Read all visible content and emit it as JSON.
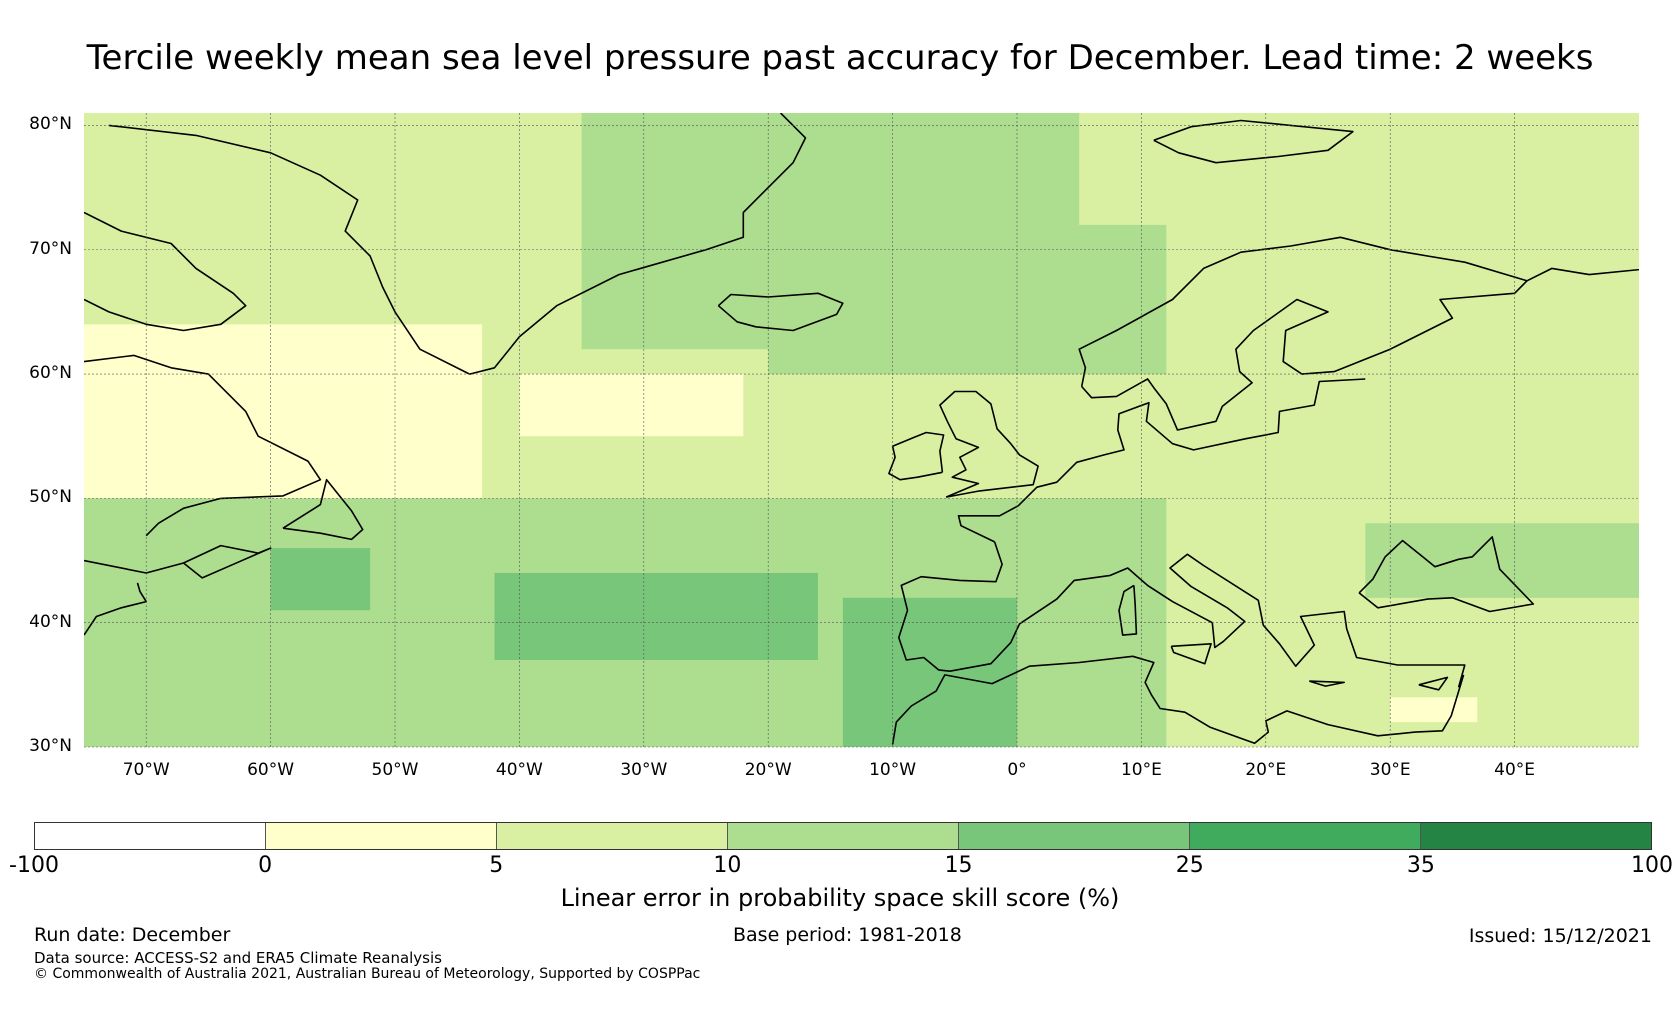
{
  "title": "Tercile weekly mean sea level pressure past accuracy for December. Lead time: 2 weeks",
  "map": {
    "region": "North Atlantic and Europe",
    "lat_range": [
      30,
      81
    ],
    "lon_range": [
      -75,
      50
    ],
    "lat_ticks": [
      {
        "value": 80,
        "label": "80°N"
      },
      {
        "value": 70,
        "label": "70°N"
      },
      {
        "value": 60,
        "label": "60°N"
      },
      {
        "value": 50,
        "label": "50°N"
      },
      {
        "value": 40,
        "label": "40°N"
      },
      {
        "value": 30,
        "label": "30°N"
      }
    ],
    "lon_ticks": [
      {
        "value": -70,
        "label": "70°W"
      },
      {
        "value": -60,
        "label": "60°W"
      },
      {
        "value": -50,
        "label": "50°W"
      },
      {
        "value": -40,
        "label": "40°W"
      },
      {
        "value": -30,
        "label": "30°W"
      },
      {
        "value": -20,
        "label": "20°W"
      },
      {
        "value": -10,
        "label": "10°W"
      },
      {
        "value": 0,
        "label": "0°"
      },
      {
        "value": 10,
        "label": "10°E"
      },
      {
        "value": 20,
        "label": "20°E"
      },
      {
        "value": 30,
        "label": "30°E"
      },
      {
        "value": 40,
        "label": "40°E"
      }
    ],
    "skill_regions": [
      {
        "name": "base",
        "class": "5-10"
      },
      {
        "name": "labrador-newfoundland",
        "class": "0-5",
        "lon": [
          -75,
          -43
        ],
        "lat": [
          50,
          64
        ]
      },
      {
        "name": "mid-atlantic-north",
        "class": "0-5",
        "lon": [
          -40,
          -22
        ],
        "lat": [
          55,
          60
        ]
      },
      {
        "name": "greenland-sea",
        "class": "10-15",
        "lon": [
          -35,
          5
        ],
        "lat": [
          62,
          81
        ]
      },
      {
        "name": "norwegian-sea",
        "class": "10-15",
        "lon": [
          -20,
          12
        ],
        "lat": [
          60,
          72
        ]
      },
      {
        "name": "subtropical-atlantic",
        "class": "10-15",
        "lon": [
          -75,
          12
        ],
        "lat": [
          30,
          50
        ]
      },
      {
        "name": "azores-core",
        "class": "15-25",
        "lon": [
          -42,
          -16
        ],
        "lat": [
          37,
          44
        ]
      },
      {
        "name": "iberia-morocco",
        "class": "15-25",
        "lon": [
          -14,
          0
        ],
        "lat": [
          30,
          42
        ]
      },
      {
        "name": "west-atlantic-core",
        "class": "15-25",
        "lon": [
          -60,
          -52
        ],
        "lat": [
          41,
          46
        ]
      },
      {
        "name": "eastern-europe",
        "class": "10-15",
        "lon": [
          28,
          50
        ],
        "lat": [
          42,
          48
        ]
      },
      {
        "name": "levant",
        "class": "0-5",
        "lon": [
          30,
          37
        ],
        "lat": [
          32,
          34
        ]
      }
    ]
  },
  "colorbar": {
    "label": "Linear error in probability space skill score (%)",
    "ticks": [
      "-100",
      "0",
      "5",
      "10",
      "15",
      "25",
      "35",
      "100"
    ],
    "classes": [
      {
        "range": "-100-0",
        "color": "#ffffff"
      },
      {
        "range": "0-5",
        "color": "#ffffcc"
      },
      {
        "range": "5-10",
        "color": "#d9f0a3"
      },
      {
        "range": "10-15",
        "color": "#addd8e"
      },
      {
        "range": "15-25",
        "color": "#78c679"
      },
      {
        "range": "25-35",
        "color": "#41ab5d"
      },
      {
        "range": "35-100",
        "color": "#238443"
      }
    ]
  },
  "footer": {
    "run_date": "Run date: December",
    "base_period": "Base period: 1981-2018",
    "issued": "Issued: 15/12/2021",
    "data_source": "Data source: ACCESS-S2 and ERA5 Climate Reanalysis",
    "copyright": "© Commonwealth of Australia 2021, Australian Bureau of Meteorology, Supported by COSPPac"
  }
}
